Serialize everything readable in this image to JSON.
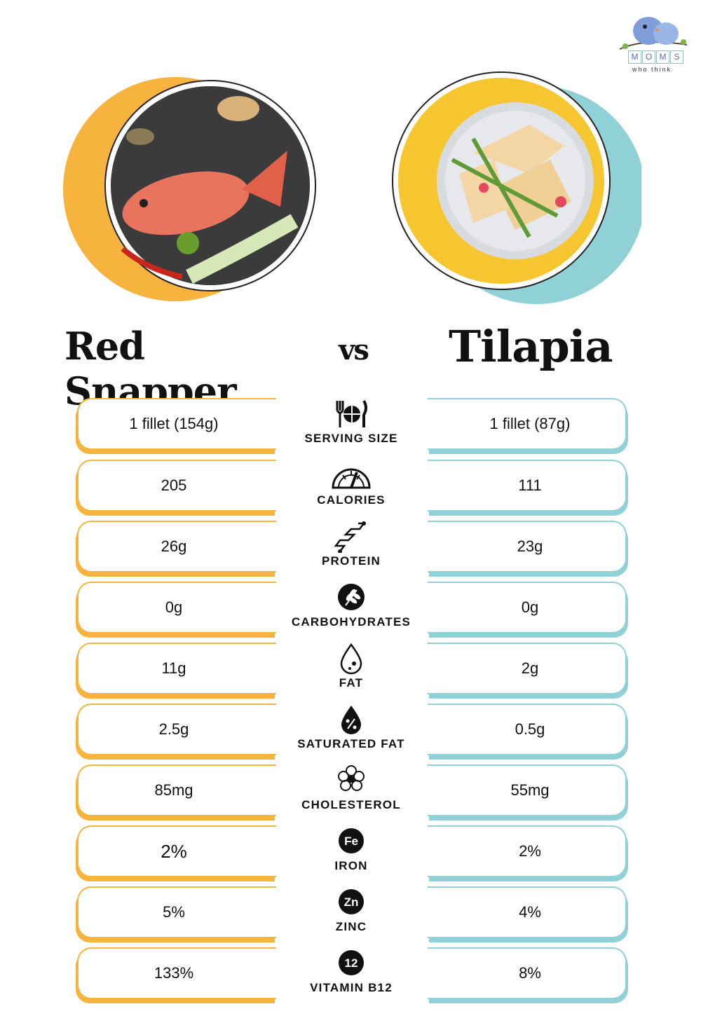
{
  "brand": {
    "logo_letters": [
      "M",
      "O",
      "M",
      "S"
    ],
    "tagline": "who think",
    "accent_left": "#f6b33e",
    "accent_right": "#8fd1d6"
  },
  "titles": {
    "left": "Red Snapper",
    "vs": "vs",
    "right": "Tilapia"
  },
  "rows": [
    {
      "label": "SERVING SIZE",
      "icon": "utensils-plate-icon",
      "left": "1 fillet (154g)",
      "right": "1 fillet (87g)"
    },
    {
      "label": "CALORIES",
      "icon": "gauge-icon",
      "left": "205",
      "right": "111"
    },
    {
      "label": "PROTEIN",
      "icon": "protein-chain-icon",
      "left": "26g",
      "right": "23g"
    },
    {
      "label": "CARBOHYDRATES",
      "icon": "wheat-icon",
      "left": "0g",
      "right": "0g"
    },
    {
      "label": "FAT",
      "icon": "drop-icon",
      "left": "11g",
      "right": "2g"
    },
    {
      "label": "SATURATED FAT",
      "icon": "drop-percent-icon",
      "left": "2.5g",
      "right": "0.5g"
    },
    {
      "label": "CHOLESTEROL",
      "icon": "cells-icon",
      "left": "85mg",
      "right": "55mg"
    },
    {
      "label": "IRON",
      "icon": "fe-badge-icon",
      "badge": "Fe",
      "left": "2%",
      "right": "2%"
    },
    {
      "label": "ZINC",
      "icon": "zn-badge-icon",
      "badge": "Zn",
      "left": "5%",
      "right": "4%"
    },
    {
      "label": "VITAMIN B12",
      "icon": "b12-badge-icon",
      "badge": "12",
      "left": "133%",
      "right": "8%"
    }
  ]
}
